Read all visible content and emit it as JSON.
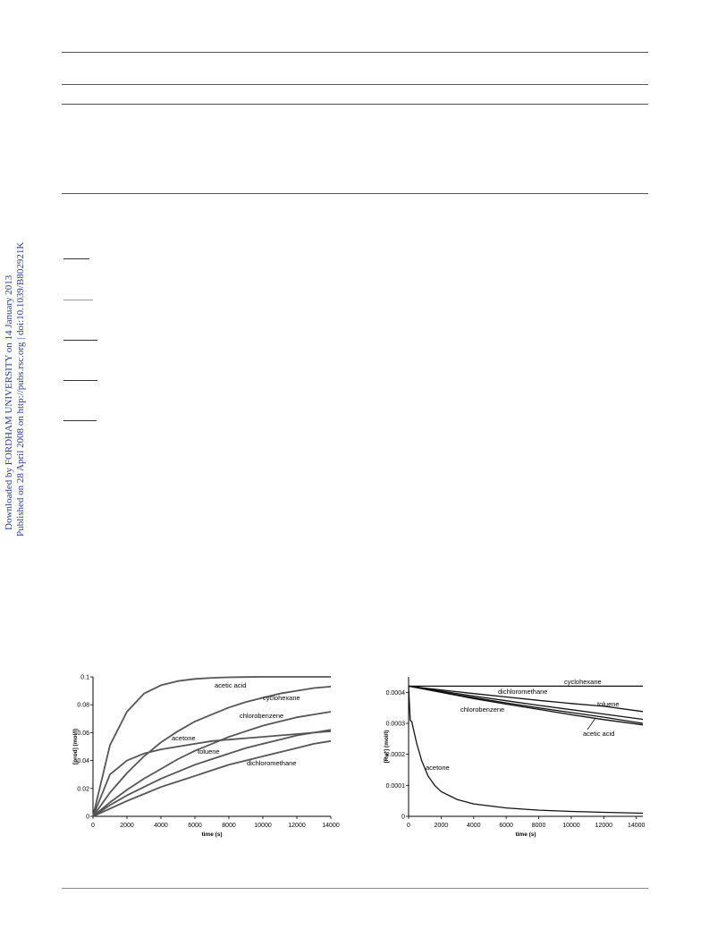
{
  "sidebar": {
    "line1": "Downloaded by FORDHAM UNIVERSITY on 14 January 2013",
    "line2": "Published on 28 April 2008 on http://pubs.rsc.org | doi:10.1039/B802921K"
  },
  "colors": {
    "curve": "#555555",
    "sidebar": "#2a3b8f",
    "rule": "#555555"
  },
  "chart_data": [
    {
      "type": "line",
      "xlabel": "time (s)",
      "ylabel": "[prod] (mol/l)",
      "xlim": [
        0,
        14000
      ],
      "ylim": [
        0,
        0.1
      ],
      "xticks": [
        0,
        2000,
        4000,
        6000,
        8000,
        10000,
        12000,
        14000
      ],
      "yticks": [
        0,
        0.02,
        0.04,
        0.06,
        0.08,
        0.1
      ],
      "x": [
        0,
        1000,
        2000,
        3000,
        4000,
        5000,
        6000,
        7000,
        8000,
        9000,
        10000,
        11000,
        12000,
        13000,
        14000
      ],
      "series": [
        {
          "name": "acetic acid",
          "values": [
            0,
            0.051,
            0.075,
            0.088,
            0.094,
            0.097,
            0.0985,
            0.0993,
            0.0997,
            0.0999,
            0.1,
            0.1,
            0.1,
            0.1,
            0.1
          ]
        },
        {
          "name": "cyclohexane",
          "values": [
            0,
            0.017,
            0.031,
            0.043,
            0.053,
            0.061,
            0.068,
            0.073,
            0.078,
            0.082,
            0.085,
            0.088,
            0.09,
            0.092,
            0.093
          ]
        },
        {
          "name": "chlorobenzene",
          "values": [
            0,
            0.01,
            0.019,
            0.027,
            0.034,
            0.041,
            0.047,
            0.052,
            0.057,
            0.061,
            0.065,
            0.068,
            0.071,
            0.073,
            0.075
          ]
        },
        {
          "name": "acetone",
          "values": [
            0,
            0.03,
            0.04,
            0.045,
            0.048,
            0.05,
            0.052,
            0.054,
            0.055,
            0.056,
            0.057,
            0.058,
            0.059,
            0.06,
            0.061
          ]
        },
        {
          "name": "toluene",
          "values": [
            0,
            0.008,
            0.015,
            0.021,
            0.027,
            0.032,
            0.037,
            0.041,
            0.045,
            0.049,
            0.052,
            0.055,
            0.058,
            0.06,
            0.062
          ]
        },
        {
          "name": "dichloromethane",
          "values": [
            0,
            0.0055,
            0.011,
            0.016,
            0.021,
            0.025,
            0.029,
            0.033,
            0.037,
            0.04,
            0.043,
            0.046,
            0.049,
            0.052,
            0.054
          ]
        }
      ]
    },
    {
      "type": "line",
      "xlabel": "time (s)",
      "ylabel": "[Ru*] (mol/l)",
      "xlim": [
        0,
        14000
      ],
      "ylim": [
        0,
        0.00045
      ],
      "xticks": [
        0,
        2000,
        4000,
        6000,
        8000,
        10000,
        12000,
        14000
      ],
      "yticks": [
        0,
        0.0001,
        0.0002,
        0.0003,
        0.0004
      ],
      "series": [
        {
          "name": "cyclohexane",
          "x": [
            0,
            14400
          ],
          "values": [
            0.00042,
            0.00042
          ]
        },
        {
          "name": "dichloromethane",
          "x": [
            0,
            2000,
            4000,
            6000,
            8000,
            10000,
            12000,
            14400
          ],
          "values": [
            0.00042,
            0.000408,
            0.000396,
            0.000385,
            0.000374,
            0.000364,
            0.000355,
            0.000338
          ]
        },
        {
          "name": "toluene",
          "x": [
            0,
            2000,
            4000,
            6000,
            8000,
            10000,
            12000,
            14400
          ],
          "values": [
            0.00042,
            0.000404,
            0.000388,
            0.000373,
            0.000358,
            0.000344,
            0.00033,
            0.000313
          ]
        },
        {
          "name": "chlorobenzene",
          "x": [
            0,
            2000,
            4000,
            6000,
            8000,
            10000,
            12000,
            14400
          ],
          "values": [
            0.00042,
            0.000401,
            0.000383,
            0.000366,
            0.00035,
            0.000335,
            0.00032,
            0.0003
          ]
        },
        {
          "name": "acetic acid",
          "x": [
            0,
            2000,
            4000,
            6000,
            8000,
            10000,
            12000,
            14400
          ],
          "values": [
            0.00042,
            0.0004,
            0.00038,
            0.000362,
            0.000345,
            0.000328,
            0.000312,
            0.000295
          ]
        },
        {
          "name": "acetone",
          "x": [
            0,
            100,
            200,
            300,
            500,
            800,
            1200,
            1600,
            2000,
            3000,
            4000,
            6000,
            8000,
            10000,
            12000,
            14400
          ],
          "values": [
            0.00042,
            0.00031,
            0.000305,
            0.00028,
            0.000235,
            0.00018,
            0.00013,
            0.0001,
            8e-05,
            5.4e-05,
            4e-05,
            2.7e-05,
            2e-05,
            1.6e-05,
            1.3e-05,
            1e-05
          ]
        }
      ]
    }
  ]
}
